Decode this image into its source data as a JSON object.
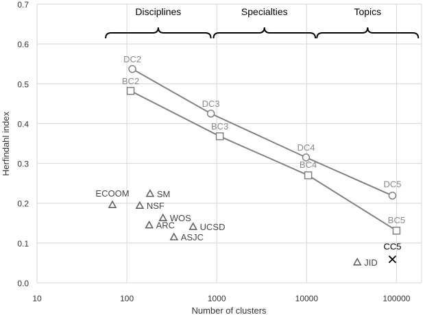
{
  "chart_data": {
    "type": "scatter",
    "xlabel": "Number of clusters",
    "ylabel": "Herfindahl index",
    "xscale": "log",
    "xlim": [
      10,
      190000
    ],
    "ylim": [
      0,
      0.7
    ],
    "xticks": [
      10,
      100,
      1000,
      10000,
      100000
    ],
    "xtick_labels": [
      "10",
      "100",
      "1000",
      "10000",
      "100000"
    ],
    "yticks": [
      0,
      0.1,
      0.2,
      0.3,
      0.4,
      0.5,
      0.6,
      0.7
    ],
    "ytick_labels": [
      "0.0",
      "0.1",
      "0.2",
      "0.3",
      "0.4",
      "0.5",
      "0.6",
      "0.7"
    ],
    "grid": true,
    "series": [
      {
        "marker": "circle",
        "line": true,
        "color": "#808080",
        "points": [
          {
            "label": "DC2",
            "x": 115,
            "y": 0.537
          },
          {
            "label": "DC3",
            "x": 860,
            "y": 0.425
          },
          {
            "label": "DC4",
            "x": 9850,
            "y": 0.315
          },
          {
            "label": "DC5",
            "x": 90000,
            "y": 0.219
          }
        ]
      },
      {
        "marker": "square",
        "line": true,
        "color": "#808080",
        "points": [
          {
            "label": "BC2",
            "x": 110,
            "y": 0.482
          },
          {
            "label": "BC3",
            "x": 1080,
            "y": 0.368
          },
          {
            "label": "BC4",
            "x": 10400,
            "y": 0.27
          },
          {
            "label": "BC5",
            "x": 100000,
            "y": 0.131
          }
        ]
      },
      {
        "marker": "triangle",
        "line": false,
        "color": "#606060",
        "points": [
          {
            "label": "ECOOM",
            "x": 69,
            "y": 0.196
          },
          {
            "label": "SM",
            "x": 181,
            "y": 0.224
          },
          {
            "label": "NSF",
            "x": 139,
            "y": 0.194
          },
          {
            "label": "WOS",
            "x": 252,
            "y": 0.163
          },
          {
            "label": "ARC",
            "x": 177,
            "y": 0.145
          },
          {
            "label": "UCSD",
            "x": 545,
            "y": 0.141
          },
          {
            "label": "ASJC",
            "x": 334,
            "y": 0.115
          },
          {
            "label": "JID",
            "x": 36600,
            "y": 0.052
          }
        ]
      },
      {
        "marker": "x",
        "line": false,
        "color": "#000000",
        "points": [
          {
            "label": "CC5",
            "x": 90000,
            "y": 0.059
          }
        ]
      }
    ],
    "annotations": [
      {
        "text": "Disciplines",
        "x_from": 58,
        "x_to": 860
      },
      {
        "text": "Specialties",
        "x_from": 920,
        "x_to": 12500
      },
      {
        "text": "Topics",
        "x_from": 13000,
        "x_to": 175000
      }
    ]
  }
}
